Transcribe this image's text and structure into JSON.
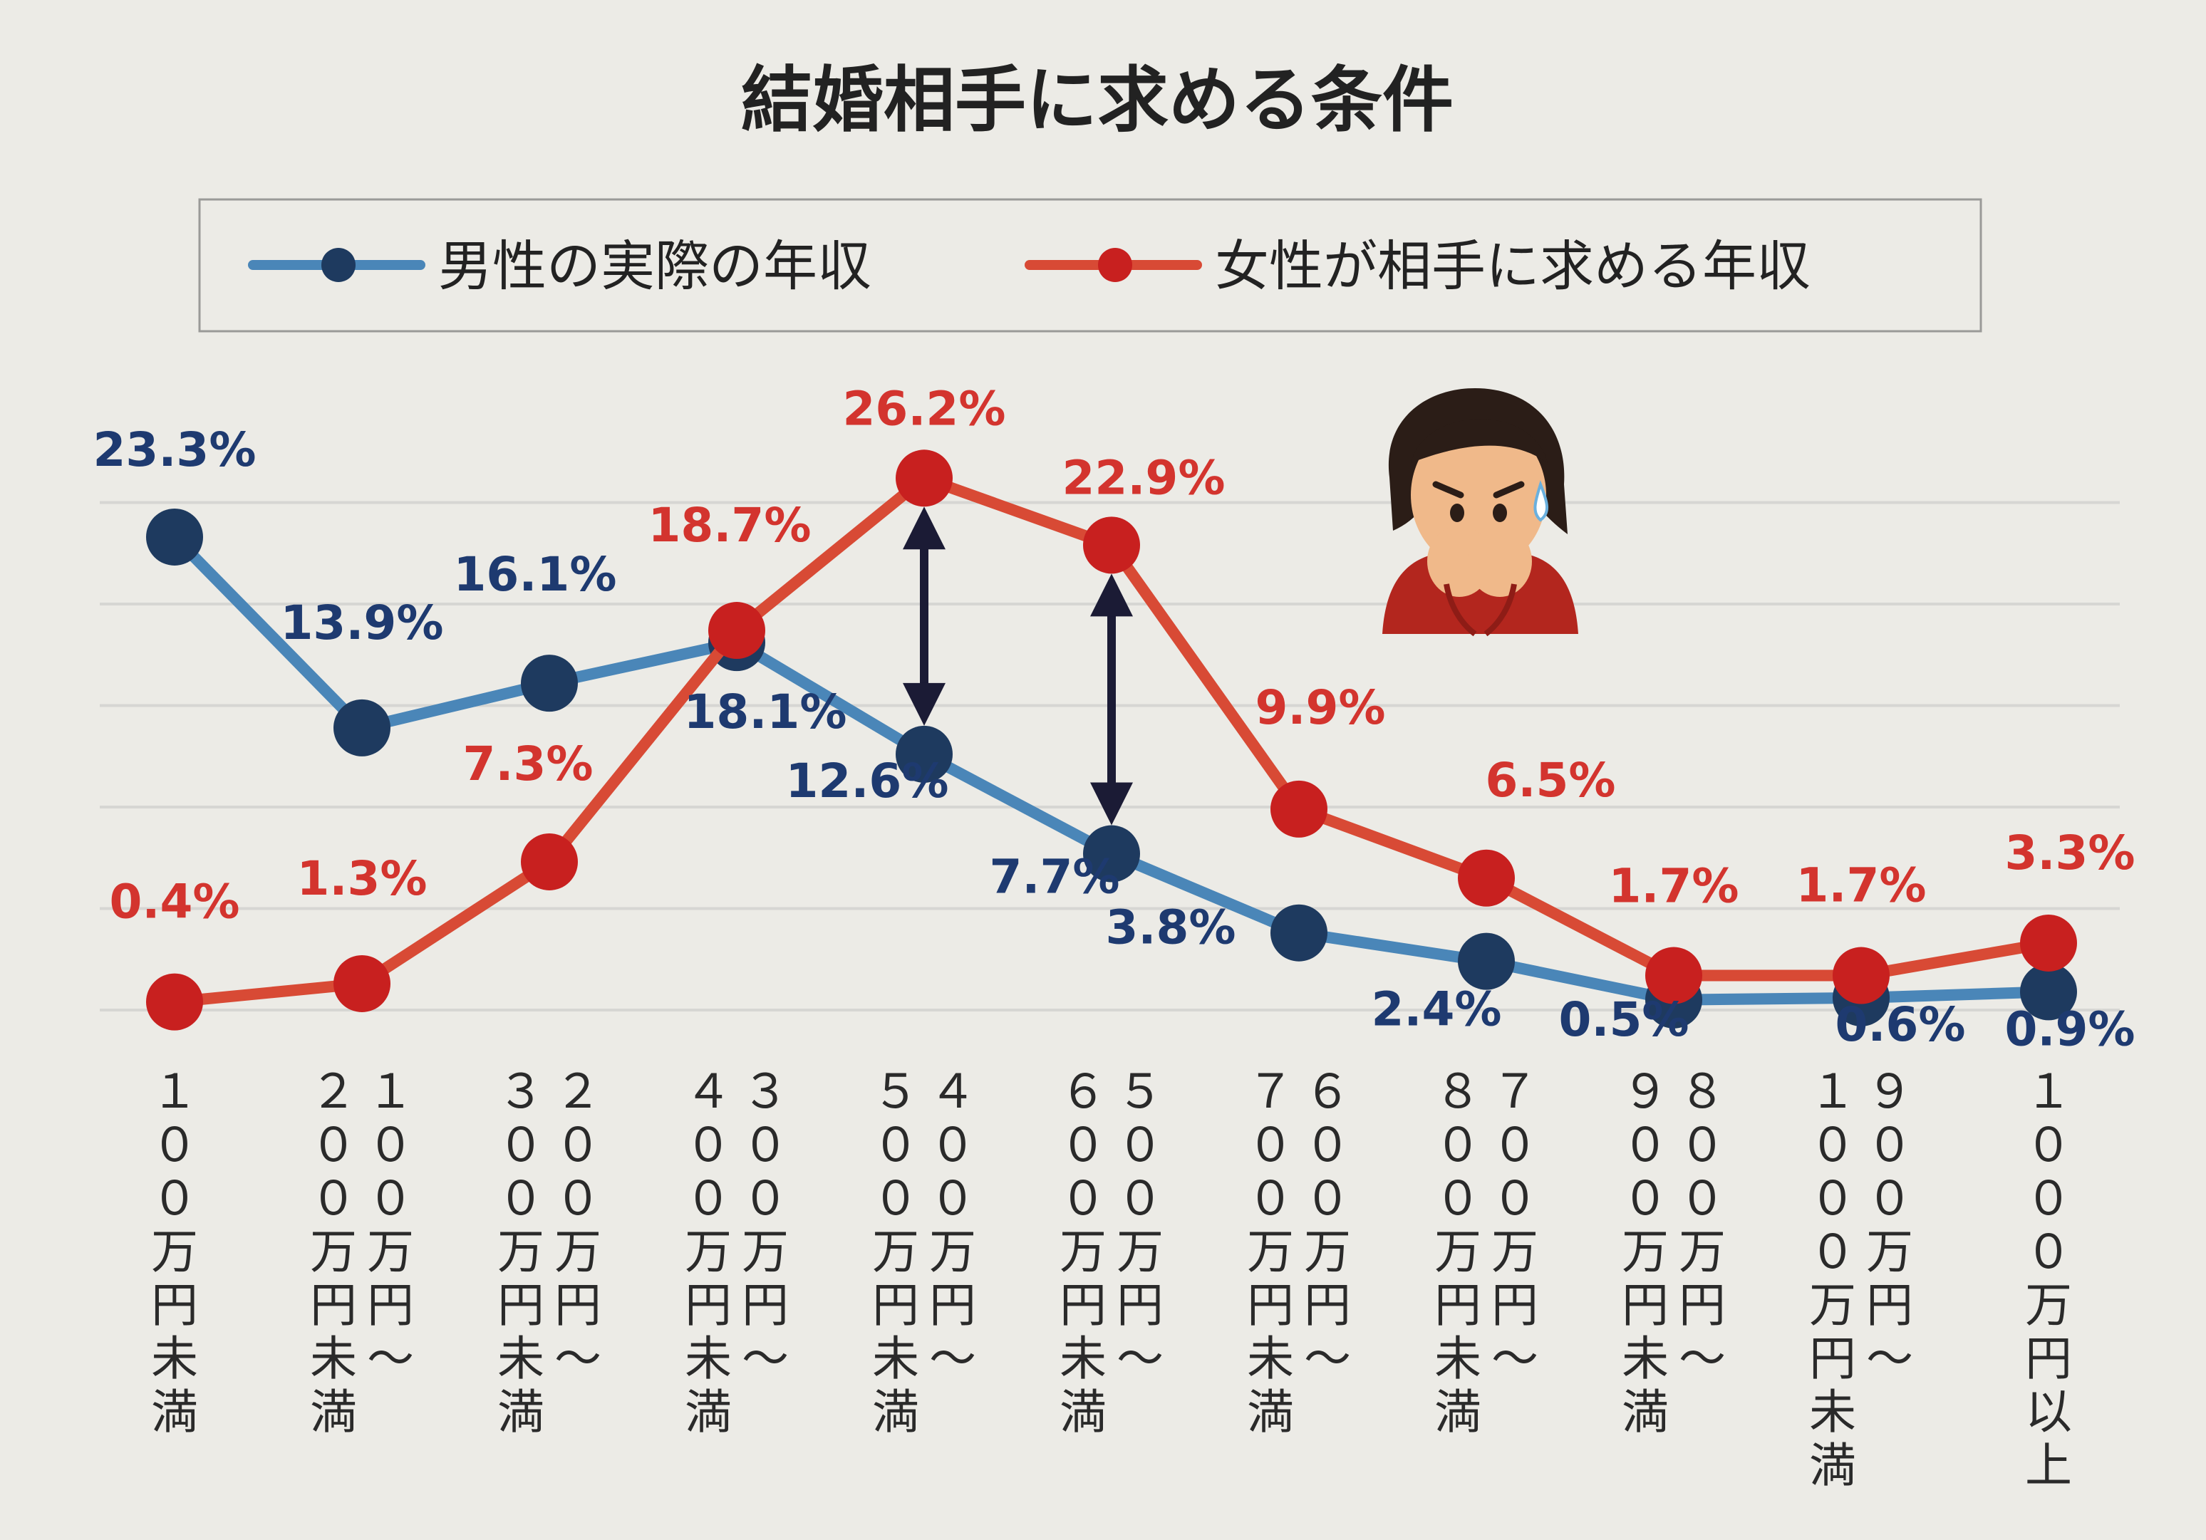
{
  "chart_data": {
    "type": "line",
    "title": "結婚相手に求める条件",
    "categories": [
      [
        "１００万円未満"
      ],
      [
        "１００万円～",
        "２００万円未満"
      ],
      [
        "２００万円～",
        "３００万円未満"
      ],
      [
        "３００万円～",
        "４００万円未満"
      ],
      [
        "４００万円～",
        "５００万円未満"
      ],
      [
        "５００万円～",
        "６００万円未満"
      ],
      [
        "６００万円～",
        "７００万円未満"
      ],
      [
        "７００万円～",
        "８００万円未満"
      ],
      [
        "８００万円～",
        "９００万円未満"
      ],
      [
        "９００万円～",
        "１０００万円未満"
      ],
      [
        "１０００万円以上"
      ]
    ],
    "series": [
      {
        "name": "男性の実際の年収",
        "color": "#2c5f8f",
        "label_color": "#1e3a70",
        "values": [
          23.3,
          13.9,
          16.1,
          18.1,
          12.6,
          7.7,
          3.8,
          2.4,
          0.5,
          0.6,
          0.9
        ],
        "labels": [
          "23.3%",
          "13.9%",
          "16.1%",
          "18.1%",
          "12.6%",
          "7.7%",
          "3.8%",
          "2.4%",
          "0.5%",
          "0.6%",
          "0.9%"
        ]
      },
      {
        "name": "女性が相手に求める年収",
        "color": "#d3342e",
        "label_color": "#d3342e",
        "values": [
          0.4,
          1.3,
          7.3,
          18.7,
          26.2,
          22.9,
          9.9,
          6.5,
          1.7,
          1.7,
          3.3
        ],
        "labels": [
          "0.4%",
          "1.3%",
          "7.3%",
          "18.7%",
          "26.2%",
          "22.9%",
          "9.9%",
          "6.5%",
          "1.7%",
          "1.7%",
          "3.3%"
        ]
      }
    ],
    "ylim": [
      0,
      30
    ],
    "grid": true,
    "legend": "top",
    "annotations": [
      "double-arrow between series at 400–500万円",
      "double-arrow between series at 500–600万円"
    ],
    "illustration": "worried-woman-icon",
    "line_color_blue": "#4a86b8",
    "line_color_red": "#d84a35",
    "grid_color": "#d6d6d3"
  }
}
